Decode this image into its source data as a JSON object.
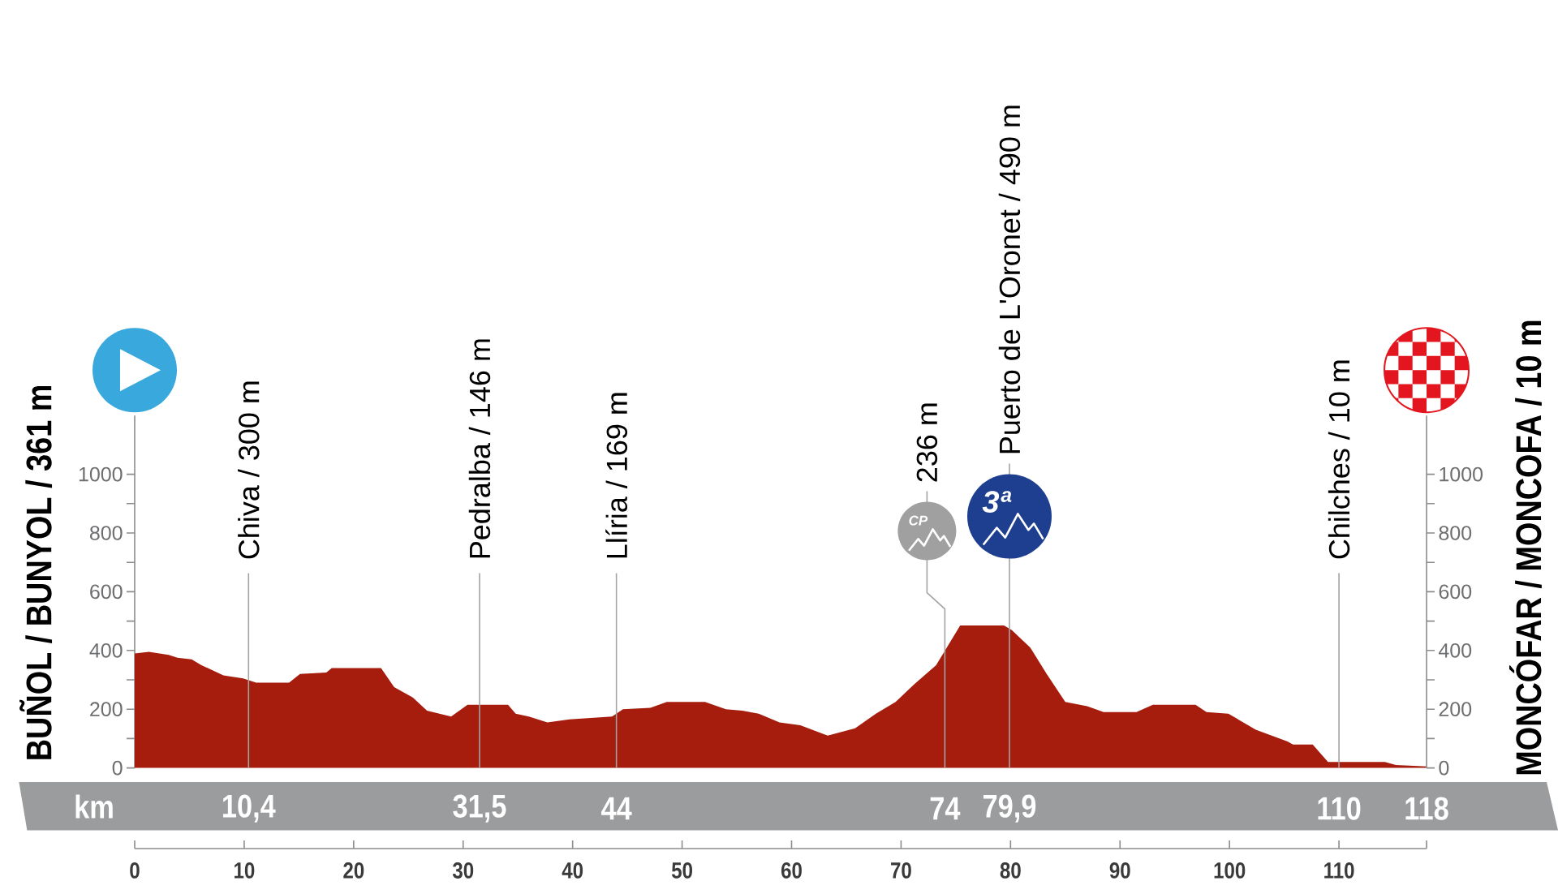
{
  "chart_data": {
    "type": "area",
    "x2label": "km",
    "color": "#a61d0d",
    "x": [
      0,
      1.3,
      3.1,
      3.9,
      5.2,
      6.1,
      8.1,
      9.9,
      11.1,
      14.1,
      15.1,
      17.5,
      18,
      22.5,
      23.7,
      25.4,
      26.7,
      28.9,
      30.4,
      34.1,
      34.8,
      36,
      37.7,
      39.7,
      43.6,
      44.6,
      47.1,
      48.6,
      52.1,
      54,
      55.5,
      57,
      58.9,
      60.8,
      63.3,
      65.8,
      67.7,
      69.5,
      71.2,
      73.2,
      75.4,
      79.4,
      80.1,
      81.8,
      83.3,
      85,
      87,
      88.5,
      91.5,
      93,
      96.9,
      97.9,
      99.9,
      102.4,
      105.3,
      105.8,
      107.6,
      109,
      109.5,
      114.2,
      115.2,
      118
    ],
    "values": [
      390,
      395,
      385,
      375,
      370,
      350,
      315,
      305,
      290,
      290,
      320,
      325,
      340,
      340,
      275,
      240,
      195,
      175,
      215,
      215,
      185,
      175,
      155,
      165,
      175,
      200,
      205,
      225,
      225,
      200,
      195,
      185,
      155,
      145,
      110,
      135,
      185,
      225,
      285,
      350,
      485,
      485,
      470,
      410,
      320,
      225,
      210,
      190,
      190,
      215,
      215,
      190,
      185,
      130,
      90,
      80,
      80,
      20,
      20,
      20,
      10,
      5
    ],
    "xlim": [
      0,
      118
    ],
    "xticks": [
      0,
      10,
      20,
      30,
      40,
      50,
      60,
      70,
      80,
      90,
      100,
      110,
      {
        "value": 118,
        "label": null
      }
    ],
    "x2lim": [
      0,
      118
    ],
    "x2ticks": [
      {
        "value": 10.4,
        "label": "10,4"
      },
      {
        "value": 31.5,
        "label": "31,5"
      },
      44,
      74,
      {
        "value": 79.9,
        "label": "79,9"
      },
      110,
      118
    ],
    "ylim": [
      0,
      1200
    ],
    "yticks": [
      0,
      {
        "value": 100,
        "label": null
      },
      200,
      {
        "value": 300,
        "label": null
      },
      400,
      {
        "value": 500,
        "label": null
      },
      600,
      {
        "value": 700,
        "label": null
      },
      800,
      {
        "value": 900,
        "label": null
      },
      1000
    ],
    "y2lim": [
      0,
      1200
    ],
    "y2ticks": [
      0,
      {
        "value": 100,
        "label": null
      },
      200,
      {
        "value": 300,
        "label": null
      },
      400,
      {
        "value": 500,
        "label": null
      },
      600,
      {
        "value": 700,
        "label": null
      },
      800,
      {
        "value": 900,
        "label": null
      },
      1000
    ],
    "ref_lines": [
      {
        "axis": "x",
        "value": 10.4,
        "label": "Chiva / 300 m",
        "color": "#a3a3a3"
      },
      {
        "axis": "x",
        "value": 31.5,
        "label": "Pedralba / 146 m",
        "color": "#a3a3a3"
      },
      {
        "axis": "x",
        "value": 44,
        "label": "Llíria / 169 m",
        "color": "#a3a3a3"
      },
      {
        "axis": "x",
        "value": 74,
        "label": "236 m",
        "color": "#a3a3a3"
      },
      {
        "axis": "x",
        "value": 79.9,
        "label": "Puerto de L'Oronet / 490 m",
        "color": "#a3a3a3"
      },
      {
        "axis": "x",
        "value": 110,
        "label": "Chilches / 10 m",
        "color": "#a3a3a3"
      }
    ],
    "annotations": [
      "BUÑOL / BUNYOL / 361 m",
      "CP",
      "3ª",
      "MONCÓFAR / MONCOFA / 10 m"
    ]
  }
}
